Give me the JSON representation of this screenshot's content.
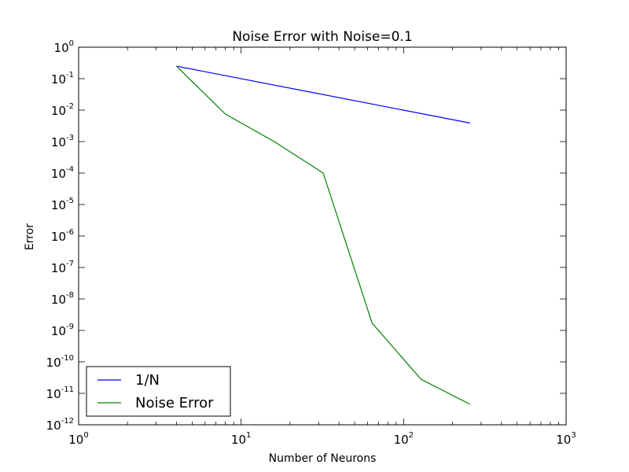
{
  "chart_data": {
    "type": "line",
    "title": "Noise Error with Noise=0.1",
    "xlabel": "Number of Neurons",
    "ylabel": "Error",
    "xscale": "log",
    "yscale": "log",
    "xlim": [
      1,
      1000
    ],
    "ylim": [
      1e-12,
      1
    ],
    "x_ticks": [
      {
        "base": "10",
        "exp": "0"
      },
      {
        "base": "10",
        "exp": "1"
      },
      {
        "base": "10",
        "exp": "2"
      },
      {
        "base": "10",
        "exp": "3"
      }
    ],
    "y_ticks": [
      {
        "base": "10",
        "exp": "0"
      },
      {
        "base": "10",
        "exp": "-1"
      },
      {
        "base": "10",
        "exp": "-2"
      },
      {
        "base": "10",
        "exp": "-3"
      },
      {
        "base": "10",
        "exp": "-4"
      },
      {
        "base": "10",
        "exp": "-5"
      },
      {
        "base": "10",
        "exp": "-6"
      },
      {
        "base": "10",
        "exp": "-7"
      },
      {
        "base": "10",
        "exp": "-8"
      },
      {
        "base": "10",
        "exp": "-9"
      },
      {
        "base": "10",
        "exp": "-10"
      },
      {
        "base": "10",
        "exp": "-11"
      },
      {
        "base": "10",
        "exp": "-12"
      }
    ],
    "grid": false,
    "legend_position": "lower-left",
    "series": [
      {
        "name": "1/N",
        "color": "#0000ff",
        "x": [
          4,
          256
        ],
        "y": [
          0.25,
          0.0039
        ]
      },
      {
        "name": "Noise Error",
        "color": "#008000",
        "x": [
          4,
          8,
          16,
          32,
          64,
          128,
          256
        ],
        "y": [
          0.25,
          0.0075,
          0.001,
          0.0001,
          1.7e-09,
          2.8e-11,
          4.5e-12
        ]
      }
    ]
  }
}
